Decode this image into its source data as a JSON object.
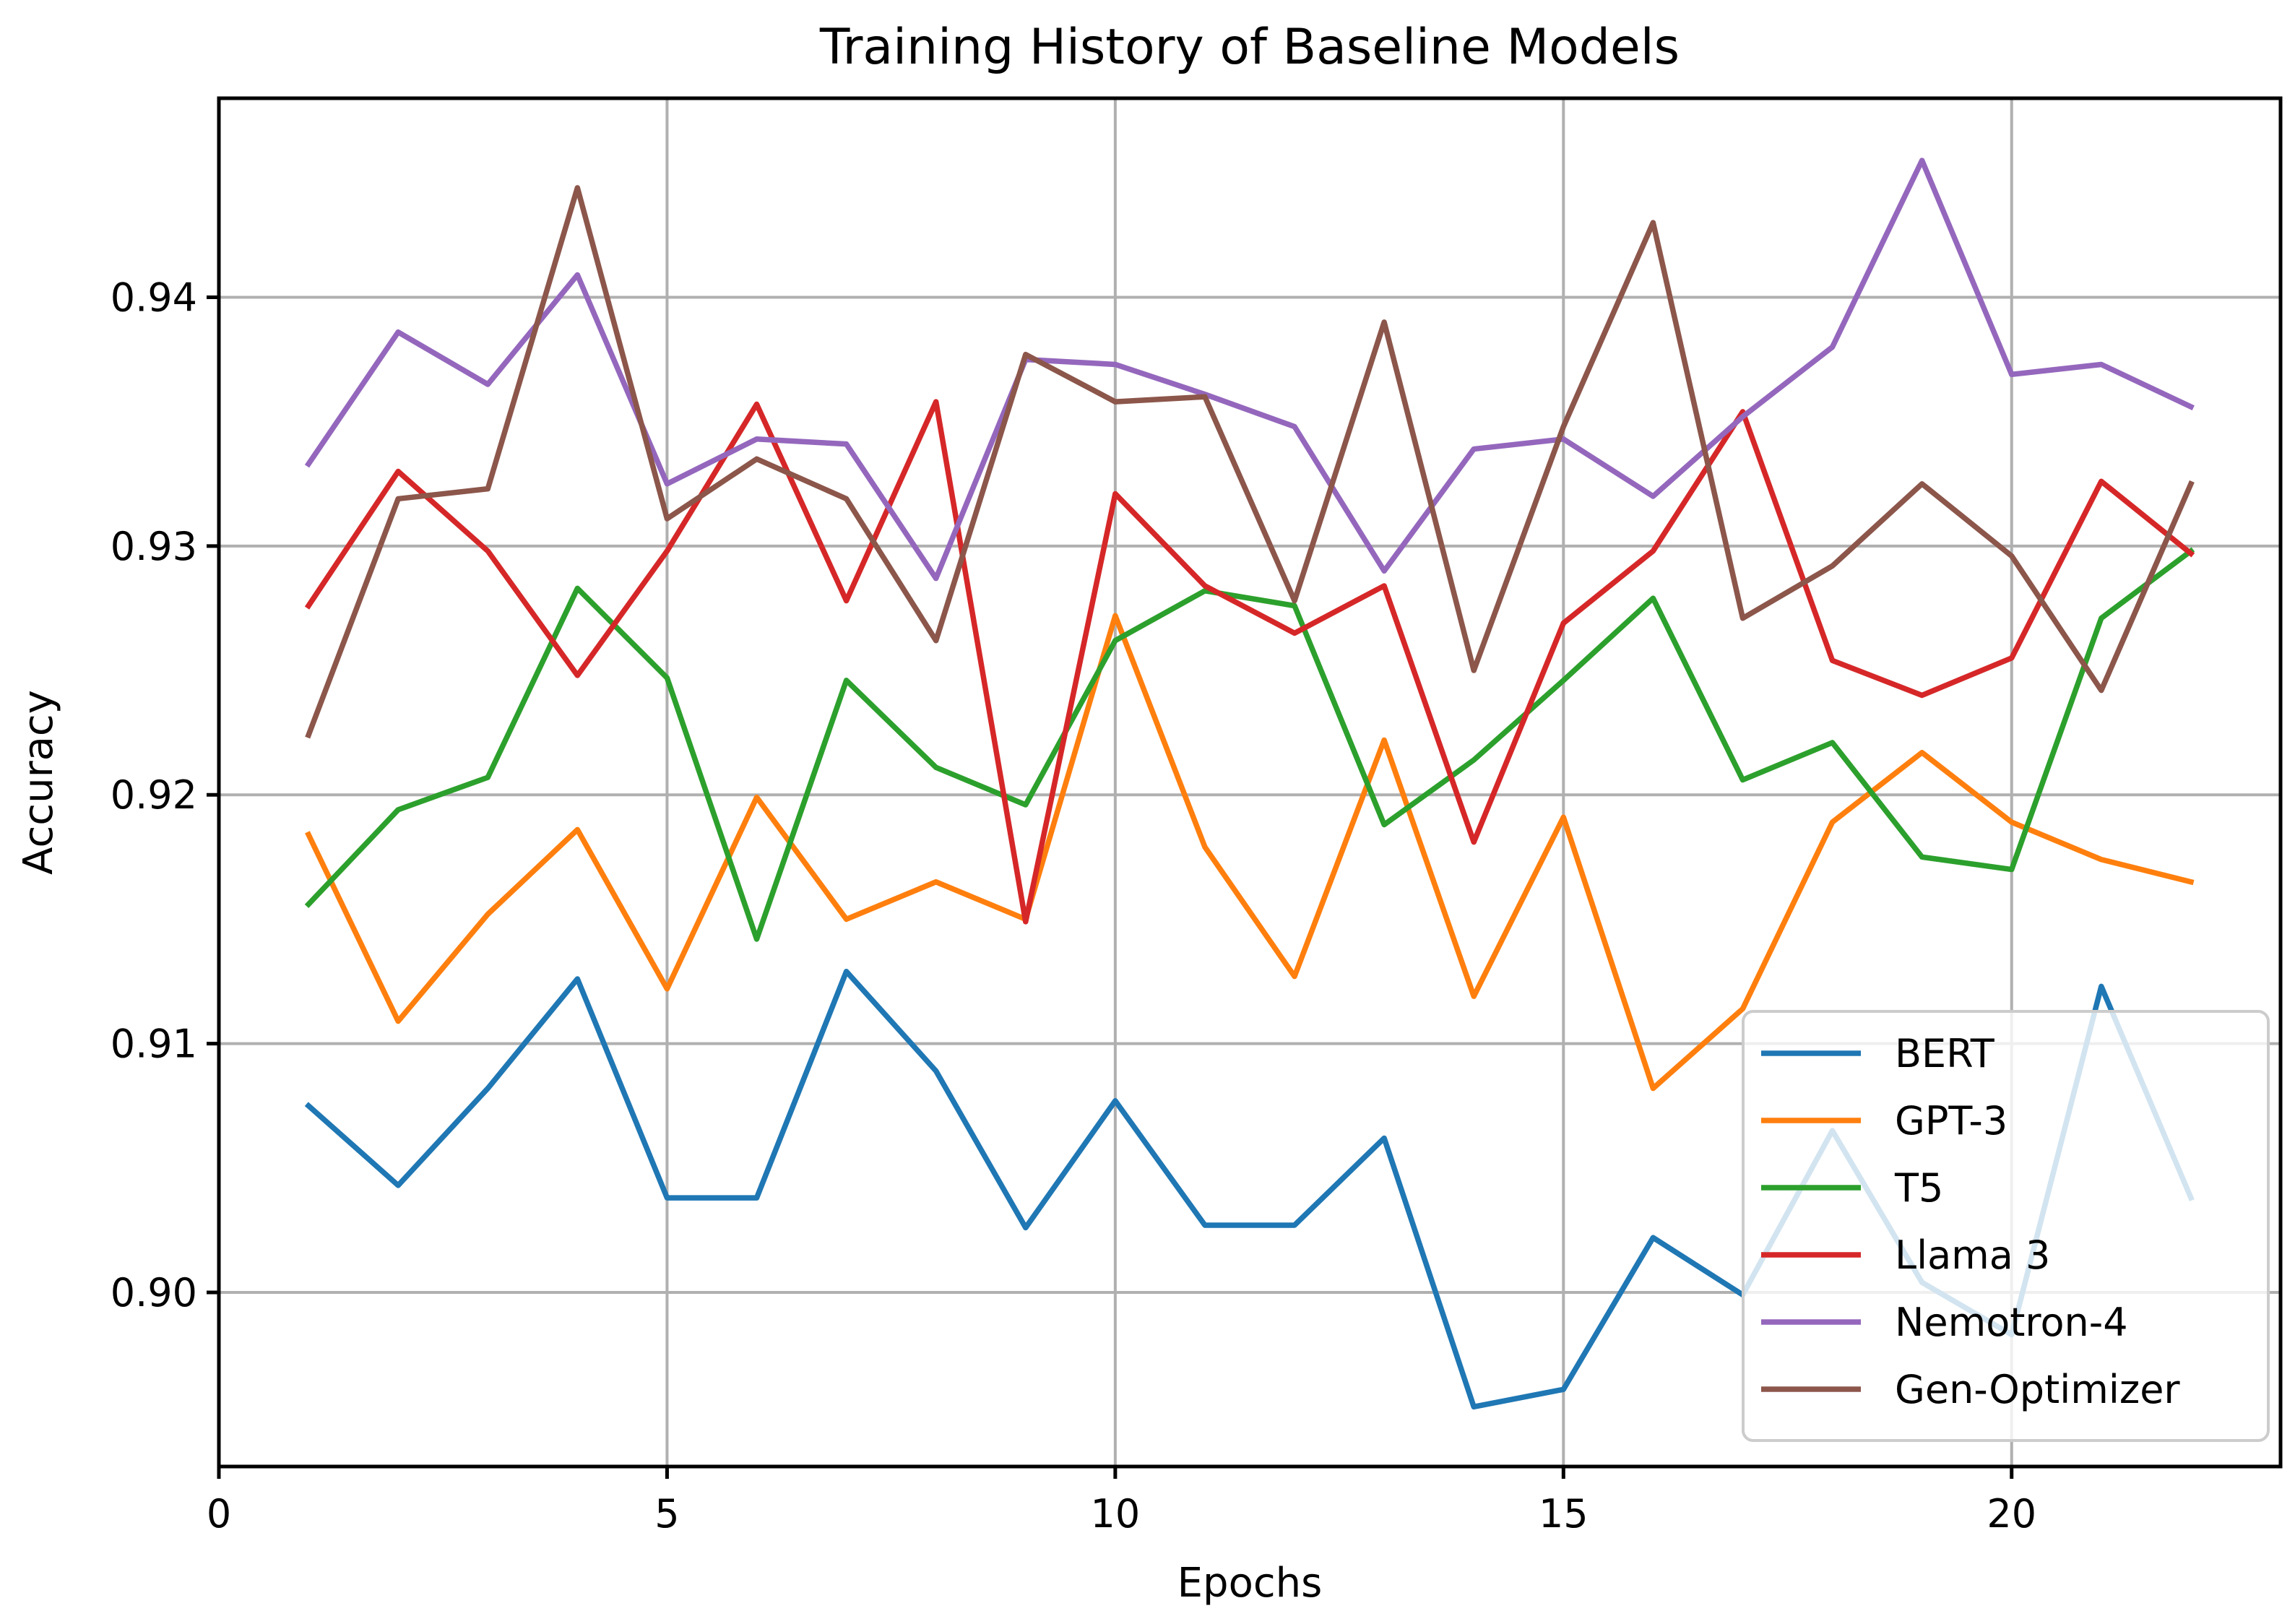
{
  "chart_data": {
    "type": "line",
    "title": "Training History of Baseline Models",
    "xlabel": "Epochs",
    "ylabel": "Accuracy",
    "xlim": [
      0,
      23
    ],
    "ylim": [
      0.893,
      0.948
    ],
    "xticks": [
      0,
      5,
      10,
      15,
      20
    ],
    "xtick_labels": [
      "0",
      "5",
      "10",
      "15",
      "20"
    ],
    "yticks": [
      0.9,
      0.91,
      0.92,
      0.93,
      0.94
    ],
    "ytick_labels": [
      "0.90",
      "0.91",
      "0.92",
      "0.93",
      "0.94"
    ],
    "grid": true,
    "legend_position": "lower-right",
    "x": [
      1,
      2,
      3,
      4,
      5,
      6,
      7,
      8,
      9,
      10,
      11,
      12,
      13,
      14,
      15,
      16,
      17,
      18,
      19,
      20,
      21,
      22
    ],
    "series": [
      {
        "name": "BERT",
        "color": "#1f77b4",
        "values": [
          0.9075,
          0.9043,
          0.9082,
          0.9126,
          0.9038,
          0.9038,
          0.9129,
          0.9089,
          0.9026,
          0.9077,
          0.9027,
          0.9027,
          0.9062,
          0.8954,
          0.8961,
          0.9022,
          0.8999,
          0.9065,
          0.9004,
          0.8983,
          0.9123,
          0.9038
        ]
      },
      {
        "name": "GPT-3",
        "color": "#ff7f0e",
        "values": [
          0.9184,
          0.9109,
          0.9152,
          0.9186,
          0.9122,
          0.9199,
          0.915,
          0.9165,
          0.915,
          0.9272,
          0.9179,
          0.9127,
          0.9222,
          0.9119,
          0.9191,
          0.9082,
          0.9114,
          0.9189,
          0.9217,
          0.9189,
          0.9174,
          0.9165
        ]
      },
      {
        "name": "T5",
        "color": "#2ca02c",
        "values": [
          0.9156,
          0.9194,
          0.9207,
          0.9283,
          0.9247,
          0.9142,
          0.9246,
          0.9211,
          0.9196,
          0.9262,
          0.9282,
          0.9276,
          0.9188,
          0.9214,
          0.9246,
          0.9279,
          0.9206,
          0.9221,
          0.9175,
          0.917,
          0.9271,
          0.9298
        ]
      },
      {
        "name": "Llama 3",
        "color": "#d62728",
        "values": [
          0.9276,
          0.933,
          0.9298,
          0.9248,
          0.9298,
          0.9357,
          0.9278,
          0.9358,
          0.9149,
          0.9321,
          0.9284,
          0.9265,
          0.9284,
          0.9181,
          0.9269,
          0.9298,
          0.9354,
          0.9254,
          0.924,
          0.9255,
          0.9326,
          0.9297
        ]
      },
      {
        "name": "Nemotron-4",
        "color": "#9467bd",
        "values": [
          0.9333,
          0.9386,
          0.9365,
          0.9409,
          0.9325,
          0.9343,
          0.9341,
          0.9287,
          0.9375,
          0.9373,
          0.9361,
          0.9348,
          0.929,
          0.9339,
          0.9343,
          0.932,
          0.9352,
          0.938,
          0.9455,
          0.9369,
          0.9373,
          0.9356
        ]
      },
      {
        "name": "Gen-Optimizer",
        "color": "#8c564b",
        "values": [
          0.9224,
          0.9319,
          0.9323,
          0.9444,
          0.9311,
          0.9335,
          0.9319,
          0.9262,
          0.9377,
          0.9358,
          0.936,
          0.9278,
          0.939,
          0.925,
          0.9348,
          0.943,
          0.9271,
          0.9292,
          0.9325,
          0.9296,
          0.9242,
          0.9325
        ]
      }
    ]
  }
}
